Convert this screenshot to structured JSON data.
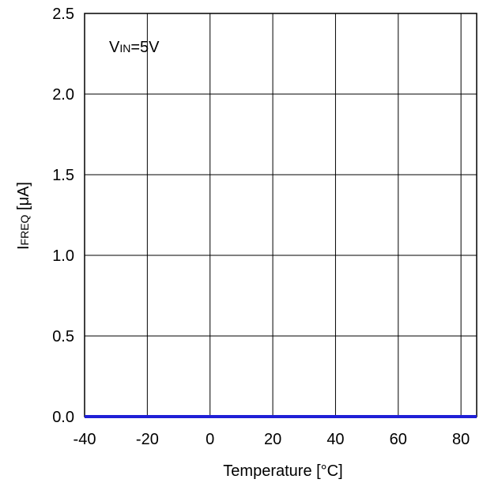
{
  "chart_data": {
    "type": "line",
    "title": "",
    "xlabel": "Temperature [°C]",
    "ylabel": {
      "main": "I",
      "sub": "FREQ",
      "unit": " [μA]"
    },
    "annotation": {
      "main": "V",
      "sub": "IN",
      "rest": "=5V"
    },
    "xlim": [
      -40,
      85
    ],
    "ylim": [
      0,
      2.5
    ],
    "x_ticks": [
      -40,
      -20,
      0,
      20,
      40,
      60,
      80
    ],
    "x_tick_labels": [
      "-40",
      "-20",
      "0",
      "20",
      "40",
      "60",
      "80"
    ],
    "y_ticks": [
      0,
      0.5,
      1.0,
      1.5,
      2.0,
      2.5
    ],
    "y_tick_labels": [
      "0.0",
      "0.5",
      "1.0",
      "1.5",
      "2.0",
      "2.5"
    ],
    "grid": true,
    "series": [
      {
        "color": "#1f1fd6",
        "x": [
          -40,
          -20,
          0,
          20,
          40,
          60,
          85
        ],
        "y": [
          0,
          0,
          0,
          0,
          0,
          0,
          0
        ]
      }
    ]
  }
}
